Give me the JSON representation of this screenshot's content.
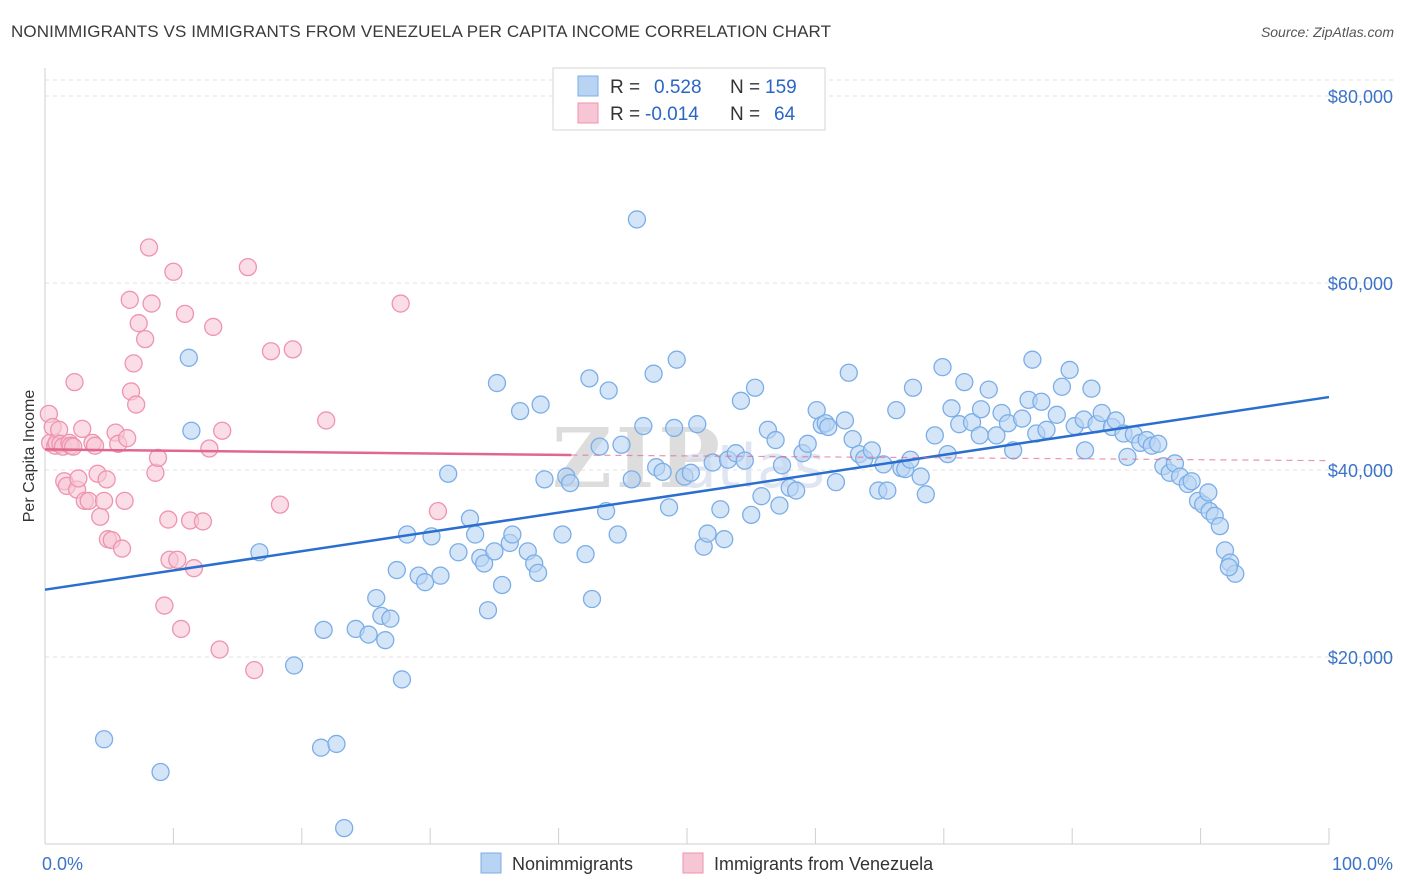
{
  "title": "NONIMMIGRANTS VS IMMIGRANTS FROM VENEZUELA PER CAPITA INCOME CORRELATION CHART",
  "source": "Source: ZipAtlas.com",
  "watermark": {
    "zip": "ZIP",
    "atlas": "atlas"
  },
  "chart_data": {
    "type": "scatter",
    "ylabel": "Per Capita Income",
    "x_axis": {
      "min_label": "0.0%",
      "max_label": "100.0%",
      "range": [
        0,
        100
      ]
    },
    "y_axis": {
      "range": [
        0,
        85000
      ],
      "ticks": [
        20000,
        40000,
        60000,
        80000
      ],
      "tick_labels": [
        "$20,000",
        "$40,000",
        "$60,000",
        "$80,000"
      ]
    },
    "grid": true,
    "legend_position": "top-center",
    "legend": [
      {
        "r_label": "R =",
        "r_value": "0.528",
        "n_label": "N =",
        "n_value": "159"
      },
      {
        "r_label": "R =",
        "r_value": "-0.014",
        "n_label": "N =",
        "n_value": "64"
      }
    ],
    "series": [
      {
        "name": "Nonimmigrants",
        "color": "#7baee8",
        "fill": "#b9d3f3",
        "trend_color": "#2a6fcf",
        "trend": {
          "x0": 0,
          "y0": 27200,
          "x1": 100,
          "y1": 47800
        },
        "points": [
          [
            4.6,
            11200
          ],
          [
            9,
            7700
          ],
          [
            11.2,
            52000
          ],
          [
            11.4,
            44200
          ],
          [
            16.7,
            31200
          ],
          [
            19.4,
            19100
          ],
          [
            21.5,
            10300
          ],
          [
            21.7,
            22900
          ],
          [
            22.7,
            10700
          ],
          [
            23.3,
            1700
          ],
          [
            24.2,
            23000
          ],
          [
            25.2,
            22400
          ],
          [
            25.8,
            26300
          ],
          [
            26.2,
            24400
          ],
          [
            26.5,
            21800
          ],
          [
            26.9,
            24100
          ],
          [
            27.4,
            29300
          ],
          [
            27.8,
            17600
          ],
          [
            28.2,
            33100
          ],
          [
            29.1,
            28700
          ],
          [
            29.6,
            28000
          ],
          [
            30.1,
            32900
          ],
          [
            30.8,
            28700
          ],
          [
            31.4,
            39600
          ],
          [
            32.2,
            31200
          ],
          [
            33.1,
            34800
          ],
          [
            33.5,
            33100
          ],
          [
            33.9,
            30600
          ],
          [
            34.2,
            30000
          ],
          [
            34.5,
            25000
          ],
          [
            35,
            31300
          ],
          [
            35.2,
            49300
          ],
          [
            35.6,
            27700
          ],
          [
            36.2,
            32200
          ],
          [
            36.4,
            33100
          ],
          [
            37,
            46300
          ],
          [
            37.6,
            31300
          ],
          [
            38.1,
            30000
          ],
          [
            38.4,
            29000
          ],
          [
            38.6,
            47000
          ],
          [
            38.9,
            39000
          ],
          [
            40.3,
            33100
          ],
          [
            40.6,
            39300
          ],
          [
            40.9,
            38600
          ],
          [
            42.1,
            31000
          ],
          [
            42.4,
            49800
          ],
          [
            42.6,
            26200
          ],
          [
            43.2,
            42500
          ],
          [
            43.7,
            35600
          ],
          [
            43.9,
            48500
          ],
          [
            44.6,
            33100
          ],
          [
            44.9,
            42700
          ],
          [
            45.7,
            39000
          ],
          [
            46.1,
            66800
          ],
          [
            46.6,
            44700
          ],
          [
            47.4,
            50300
          ],
          [
            47.6,
            40300
          ],
          [
            48.1,
            39800
          ],
          [
            48.6,
            36000
          ],
          [
            49,
            44500
          ],
          [
            49.2,
            51800
          ],
          [
            49.8,
            39300
          ],
          [
            50.3,
            39700
          ],
          [
            50.8,
            44900
          ],
          [
            51.3,
            31800
          ],
          [
            51.6,
            33200
          ],
          [
            52,
            40800
          ],
          [
            52.6,
            35800
          ],
          [
            52.9,
            32600
          ],
          [
            53.2,
            41100
          ],
          [
            53.8,
            41800
          ],
          [
            54.2,
            47400
          ],
          [
            54.5,
            41000
          ],
          [
            55,
            35200
          ],
          [
            55.3,
            48800
          ],
          [
            55.8,
            37200
          ],
          [
            56.3,
            44300
          ],
          [
            56.9,
            43200
          ],
          [
            57.2,
            36200
          ],
          [
            57.4,
            40500
          ],
          [
            58,
            38100
          ],
          [
            58.5,
            37800
          ],
          [
            59,
            41800
          ],
          [
            59.4,
            42800
          ],
          [
            60.1,
            46400
          ],
          [
            60.5,
            44800
          ],
          [
            60.8,
            45000
          ],
          [
            61,
            44600
          ],
          [
            61.6,
            38700
          ],
          [
            62.3,
            45300
          ],
          [
            62.6,
            50400
          ],
          [
            62.9,
            43300
          ],
          [
            63.4,
            41700
          ],
          [
            63.8,
            41200
          ],
          [
            64.4,
            42100
          ],
          [
            64.9,
            37800
          ],
          [
            65.3,
            40600
          ],
          [
            65.6,
            37800
          ],
          [
            66.3,
            46400
          ],
          [
            66.7,
            40200
          ],
          [
            67,
            40100
          ],
          [
            67.4,
            41100
          ],
          [
            67.6,
            48800
          ],
          [
            68.2,
            39300
          ],
          [
            68.6,
            37400
          ],
          [
            69.3,
            43700
          ],
          [
            69.9,
            51000
          ],
          [
            70.3,
            41700
          ],
          [
            70.6,
            46600
          ],
          [
            71.2,
            44900
          ],
          [
            71.6,
            49400
          ],
          [
            72.2,
            45100
          ],
          [
            72.8,
            43700
          ],
          [
            72.9,
            46500
          ],
          [
            73.5,
            48600
          ],
          [
            74.1,
            43700
          ],
          [
            74.5,
            46100
          ],
          [
            75,
            45000
          ],
          [
            75.4,
            42100
          ],
          [
            76.1,
            45500
          ],
          [
            76.6,
            47500
          ],
          [
            76.9,
            51800
          ],
          [
            77.2,
            43900
          ],
          [
            77.6,
            47300
          ],
          [
            78,
            44300
          ],
          [
            78.8,
            45900
          ],
          [
            79.2,
            48900
          ],
          [
            79.8,
            50700
          ],
          [
            80.2,
            44700
          ],
          [
            80.9,
            45400
          ],
          [
            81,
            42100
          ],
          [
            81.5,
            48700
          ],
          [
            81.9,
            44900
          ],
          [
            82.3,
            46100
          ],
          [
            83.1,
            44600
          ],
          [
            83.4,
            45300
          ],
          [
            84,
            43900
          ],
          [
            84.3,
            41400
          ],
          [
            84.8,
            43800
          ],
          [
            85.3,
            42900
          ],
          [
            85.8,
            43200
          ],
          [
            86.2,
            42600
          ],
          [
            86.7,
            42800
          ],
          [
            87.1,
            40400
          ],
          [
            87.6,
            39700
          ],
          [
            88,
            40700
          ],
          [
            88.4,
            39300
          ],
          [
            89,
            38500
          ],
          [
            89.3,
            38800
          ],
          [
            89.8,
            36700
          ],
          [
            90.2,
            36300
          ],
          [
            90.7,
            35600
          ],
          [
            91.1,
            35100
          ],
          [
            91.5,
            34000
          ],
          [
            91.9,
            31400
          ],
          [
            92.3,
            30100
          ],
          [
            92.7,
            28900
          ],
          [
            92.2,
            29600
          ],
          [
            90.6,
            37600
          ]
        ]
      },
      {
        "name": "Immigrants from Venezuela",
        "color": "#ef93ae",
        "fill": "#f7c6d5",
        "trend_color": "#e0678e",
        "trend": {
          "x0": 0,
          "y0": 42200,
          "x1": 41,
          "y1": 41600,
          "dash_x1": 100,
          "dash_y1": 41000
        },
        "points": [
          [
            0.3,
            46000
          ],
          [
            0.4,
            42900
          ],
          [
            0.6,
            44600
          ],
          [
            0.8,
            42600
          ],
          [
            0.9,
            42900
          ],
          [
            1.1,
            44300
          ],
          [
            1.2,
            42800
          ],
          [
            1.4,
            42500
          ],
          [
            1.5,
            38800
          ],
          [
            1.7,
            38300
          ],
          [
            1.9,
            42900
          ],
          [
            2,
            42600
          ],
          [
            2.2,
            42500
          ],
          [
            2.3,
            49400
          ],
          [
            2.5,
            37900
          ],
          [
            2.6,
            39100
          ],
          [
            2.9,
            44400
          ],
          [
            3.1,
            36700
          ],
          [
            3.4,
            36700
          ],
          [
            3.7,
            42900
          ],
          [
            3.9,
            42600
          ],
          [
            4.1,
            39600
          ],
          [
            4.3,
            35000
          ],
          [
            4.6,
            36700
          ],
          [
            4.8,
            39000
          ],
          [
            4.9,
            32600
          ],
          [
            5.2,
            32500
          ],
          [
            5.5,
            44000
          ],
          [
            5.7,
            42800
          ],
          [
            6,
            31600
          ],
          [
            6.2,
            36700
          ],
          [
            6.4,
            43400
          ],
          [
            6.6,
            58200
          ],
          [
            6.7,
            48400
          ],
          [
            6.9,
            51400
          ],
          [
            7.1,
            47000
          ],
          [
            7.3,
            55700
          ],
          [
            7.8,
            54000
          ],
          [
            8.1,
            63800
          ],
          [
            8.3,
            57800
          ],
          [
            8.6,
            39700
          ],
          [
            8.8,
            41300
          ],
          [
            9.3,
            25500
          ],
          [
            9.6,
            34700
          ],
          [
            9.7,
            30400
          ],
          [
            10,
            61200
          ],
          [
            10.3,
            30400
          ],
          [
            10.6,
            23000
          ],
          [
            10.9,
            56700
          ],
          [
            11.3,
            34600
          ],
          [
            11.6,
            29500
          ],
          [
            12.3,
            34500
          ],
          [
            12.8,
            42300
          ],
          [
            13.1,
            55300
          ],
          [
            13.6,
            20800
          ],
          [
            13.8,
            44200
          ],
          [
            15.8,
            61700
          ],
          [
            16.3,
            18600
          ],
          [
            17.6,
            52700
          ],
          [
            18.3,
            36300
          ],
          [
            19.3,
            52900
          ],
          [
            21.9,
            45300
          ],
          [
            27.7,
            57800
          ],
          [
            30.6,
            35600
          ]
        ]
      }
    ]
  },
  "bottom_legend": [
    {
      "label": "Nonimmigrants"
    },
    {
      "label": "Immigrants from Venezuela"
    }
  ]
}
